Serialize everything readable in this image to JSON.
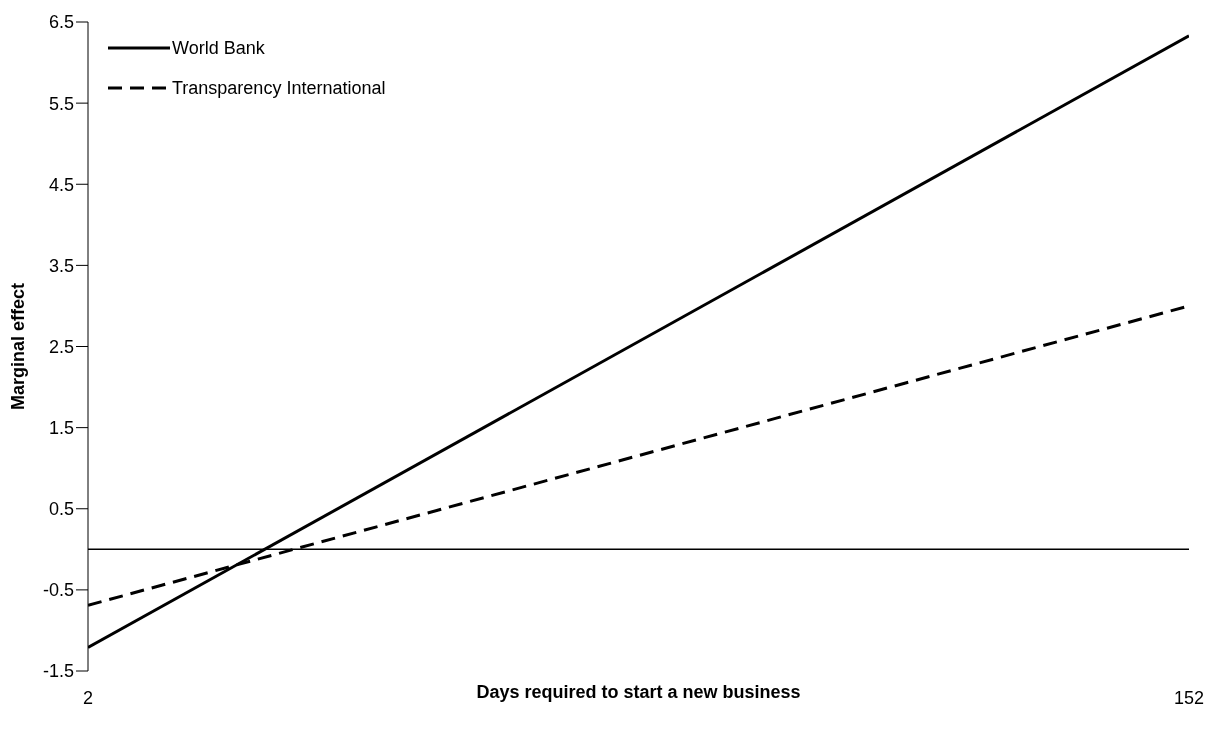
{
  "chart_data": {
    "type": "line",
    "xlabel": "Days required to start a new business",
    "ylabel": "Marginal effect",
    "x": [
      2,
      152
    ],
    "series": [
      {
        "name": "World Bank",
        "color": "#000000",
        "line_style": "solid",
        "values": [
          -1.21,
          6.33
        ]
      },
      {
        "name": "Transparency International",
        "color": "#000000",
        "line_style": "dashed",
        "values": [
          -0.69,
          3.0
        ]
      }
    ],
    "xlim": [
      2,
      152
    ],
    "xticks": [
      2,
      152
    ],
    "ylim": [
      -1.5,
      6.5
    ],
    "yticks": [
      -1.5,
      -0.5,
      0.5,
      1.5,
      2.5,
      3.5,
      4.5,
      5.5,
      6.5
    ],
    "ref_lines": [
      {
        "axis": "y",
        "value": 0,
        "color": "#000000"
      }
    ],
    "marker": "none",
    "legend": "top left"
  }
}
